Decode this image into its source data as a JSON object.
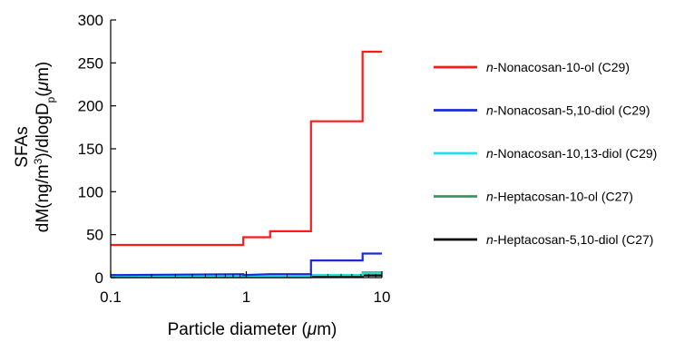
{
  "chart_data": {
    "type": "line",
    "step": true,
    "xscale": "log",
    "xlim": [
      0.1,
      10
    ],
    "ylim": [
      0,
      300
    ],
    "x_ticks": [
      0.1,
      1,
      10
    ],
    "x_tick_labels": [
      "0.1",
      "1",
      "10"
    ],
    "y_ticks": [
      0,
      50,
      100,
      150,
      200,
      250,
      300
    ],
    "y_tick_labels": [
      "0",
      "50",
      "100",
      "150",
      "200",
      "250",
      "300"
    ],
    "xlabel_prefix": "Particle diameter (",
    "xlabel_mu": "μ",
    "xlabel_suffix": "m)",
    "ylabel_line1": "SFAs",
    "ylabel_line2_a": "dM(ng/m",
    "ylabel_line2_sup": "3",
    "ylabel_line2_b": ")/dlogD",
    "ylabel_line2_sub": "p",
    "ylabel_line2_c": "(",
    "ylabel_line2_mu": "μ",
    "ylabel_line2_d": "m)",
    "legend_position": "right",
    "grid": false,
    "series": [
      {
        "name_prefix": "n",
        "name_rest": "-Nonacosan-10-ol (C29)",
        "color": "#ff1a1a",
        "x": [
          0.1,
          0.95,
          0.95,
          1.5,
          1.5,
          3.0,
          3.0,
          7.2,
          7.2,
          10
        ],
        "y": [
          38,
          38,
          47,
          47,
          54,
          54,
          182,
          182,
          263,
          263
        ]
      },
      {
        "name_prefix": "n",
        "name_rest": "-Nonacosan-5,10-diol (C29)",
        "color": "#1a2bd6",
        "x": [
          0.1,
          0.95,
          0.95,
          1.5,
          1.5,
          3.0,
          3.0,
          7.2,
          7.2,
          10
        ],
        "y": [
          3,
          4,
          3,
          4,
          4,
          4,
          20,
          20,
          28,
          28
        ]
      },
      {
        "name_prefix": "n",
        "name_rest": "-Nonacosan-10,13-diol (C29)",
        "color": "#22e0e8",
        "x": [
          0.1,
          0.95,
          0.95,
          3.0,
          3.0,
          7.2,
          7.2,
          10
        ],
        "y": [
          2,
          2,
          2,
          2,
          3,
          3,
          5,
          5
        ]
      },
      {
        "name_prefix": "n",
        "name_rest": "-Heptacosan-10-ol (C27)",
        "color": "#2e9b5f",
        "x": [
          0.1,
          3.0,
          3.0,
          7.2,
          7.2,
          10
        ],
        "y": [
          1,
          1,
          3,
          3,
          6,
          6
        ]
      },
      {
        "name_prefix": "n",
        "name_rest": "-Heptacosan-5,10-diol (C27)",
        "color": "#000000",
        "x": [
          0.1,
          3.0,
          3.0,
          7.2,
          7.2,
          10
        ],
        "y": [
          0.5,
          0.5,
          1.5,
          1.5,
          2.5,
          2.5
        ]
      }
    ]
  }
}
